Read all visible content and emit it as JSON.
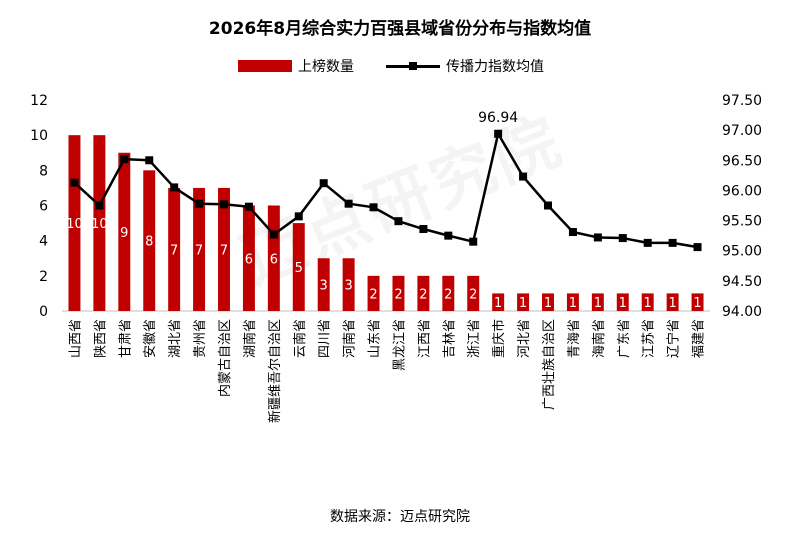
{
  "chart_data": {
    "type": "bar",
    "title": "2026年8月综合实力百强县域省份分布与指数均值",
    "categories": [
      "山西省",
      "陕西省",
      "甘肃省",
      "安徽省",
      "湖北省",
      "贵州省",
      "内蒙古自治区",
      "湖南省",
      "新疆维吾尔自治区",
      "云南省",
      "四川省",
      "河南省",
      "山东省",
      "黑龙江省",
      "江西省",
      "吉林省",
      "浙江省",
      "重庆市",
      "河北省",
      "广西壮族自治区",
      "青海省",
      "海南省",
      "广东省",
      "江苏省",
      "辽宁省",
      "福建省"
    ],
    "series": [
      {
        "name": "上榜数量",
        "type": "bar",
        "axis": "left",
        "color": "#c00000",
        "values": [
          10,
          10,
          9,
          8,
          7,
          7,
          7,
          6,
          6,
          5,
          3,
          3,
          2,
          2,
          2,
          2,
          2,
          1,
          1,
          1,
          1,
          1,
          1,
          1,
          1,
          1
        ]
      },
      {
        "name": "传播力指数均值",
        "type": "line",
        "axis": "right",
        "color": "#000000",
        "values": [
          96.13,
          95.75,
          96.52,
          96.5,
          96.05,
          95.78,
          95.77,
          95.73,
          95.27,
          95.57,
          96.12,
          95.78,
          95.72,
          95.49,
          95.36,
          95.25,
          95.15,
          96.94,
          96.23,
          95.75,
          95.31,
          95.22,
          95.21,
          95.13,
          95.13,
          95.06
        ]
      }
    ],
    "y_left": {
      "min": 0,
      "max": 12,
      "ticks": [
        "0",
        "2",
        "4",
        "6",
        "8",
        "10",
        "12"
      ]
    },
    "y_right": {
      "min": 94.0,
      "max": 97.5,
      "ticks": [
        "94.00",
        "94.50",
        "95.00",
        "95.50",
        "96.00",
        "96.50",
        "97.00",
        "97.50"
      ]
    },
    "annotation": {
      "index": 17,
      "text": "96.94"
    },
    "legend_position": "top",
    "grid": false
  },
  "watermark": "迈点研究院",
  "source": "数据来源：迈点研究院"
}
